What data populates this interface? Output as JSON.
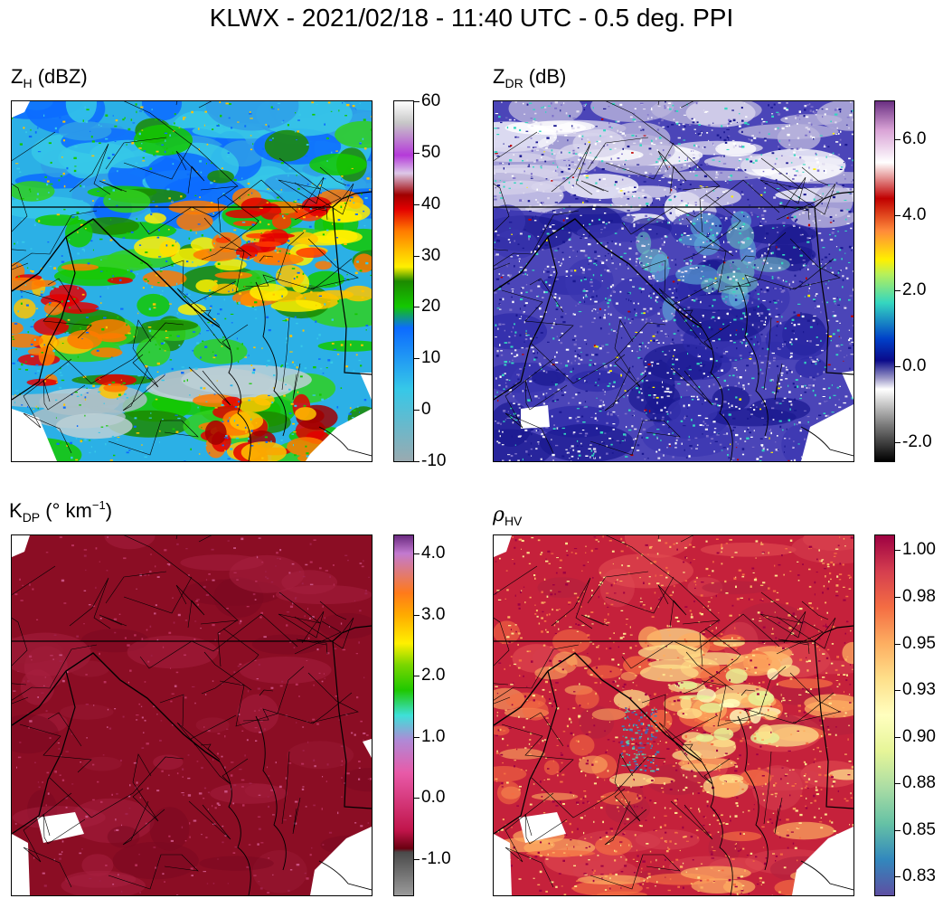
{
  "chart_data": [
    {
      "type": "heatmap",
      "title": "KLWX - 2021/02/18 - 11:40 UTC - 0.5 deg. PPI",
      "panels": [
        {
          "id": "zh",
          "label": {
            "main": "Z",
            "sub": "H",
            "rest": " (dBZ)"
          },
          "colorbar": {
            "range": [
              -10,
              60
            ],
            "ticks": [
              "60",
              "50",
              "40",
              "30",
              "20",
              "10",
              "0",
              "-10"
            ],
            "tick_values": [
              60,
              50,
              40,
              30,
              20,
              10,
              0,
              -10
            ],
            "colors": [
              "#ffffff",
              "#c7c7c7",
              "#b53ad9",
              "#dcc8e8",
              "#a00000",
              "#e30000",
              "#ff7a00",
              "#ffc400",
              "#fff000",
              "#1c8a00",
              "#14c800",
              "#0c6bff",
              "#36c8e8",
              "#9aaab0"
            ],
            "stops": [
              0,
              0.06,
              0.15,
              0.2,
              0.26,
              0.3,
              0.36,
              0.42,
              0.46,
              0.5,
              0.57,
              0.63,
              0.8,
              1.0
            ]
          }
        },
        {
          "id": "zdr",
          "label": {
            "main": "Z",
            "sub": "DR",
            "rest": " (dB)"
          },
          "colorbar": {
            "range": [
              -2.5,
              7
            ],
            "ticks": [
              "6.0",
              "4.0",
              "2.0",
              "0.0",
              "-2.0"
            ],
            "tick_values": [
              6,
              4,
              2,
              0,
              -2
            ],
            "colors": [
              "#6a2f82",
              "#d9a3d6",
              "#ffffff",
              "#c00000",
              "#ff8a3a",
              "#fff000",
              "#b7f05a",
              "#34d6c0",
              "#0040c8",
              "#0a0a8a",
              "#9d99c8",
              "#ffffff",
              "#7a7a7a",
              "#000000"
            ],
            "stops": [
              0,
              0.08,
              0.17,
              0.27,
              0.36,
              0.44,
              0.48,
              0.56,
              0.66,
              0.72,
              0.77,
              0.8,
              0.9,
              1.0
            ]
          }
        },
        {
          "id": "kdp",
          "label": {
            "main": "K",
            "sub": "DP",
            "rest1": " (",
            "deg": "°",
            "rest2": " km",
            "sup": "−1",
            "rest3": ")"
          },
          "colorbar": {
            "range": [
              -1.6,
              4.3
            ],
            "ticks": [
              "4.0",
              "3.0",
              "2.0",
              "1.0",
              "0.0",
              "-1.0"
            ],
            "tick_values": [
              4,
              3,
              2,
              1,
              0,
              -1
            ],
            "colors": [
              "#6a2a80",
              "#c27ad0",
              "#ff7a1a",
              "#ffaa00",
              "#fff000",
              "#7ad600",
              "#1fc800",
              "#3ee0d8",
              "#b089d6",
              "#e85aa8",
              "#c0144a",
              "#6a0010",
              "#4a4a4a",
              "#9a9a9a"
            ],
            "stops": [
              0,
              0.05,
              0.16,
              0.22,
              0.3,
              0.36,
              0.43,
              0.5,
              0.57,
              0.66,
              0.82,
              0.87,
              0.88,
              1.0
            ]
          }
        },
        {
          "id": "rhohv",
          "label": {
            "main": "ρ",
            "sub": "HV",
            "rest": ""
          },
          "colorbar": {
            "range": [
              0.815,
              1.008
            ],
            "ticks": [
              "1.00",
              "0.98",
              "0.95",
              "0.93",
              "0.90",
              "0.88",
              "0.85",
              "0.83"
            ],
            "tick_values": [
              1.0,
              0.975,
              0.95,
              0.925,
              0.9,
              0.875,
              0.85,
              0.825
            ],
            "colors": [
              "#9e0142",
              "#d53e4f",
              "#f46d43",
              "#fdae61",
              "#fee08b",
              "#ffffbf",
              "#e6f598",
              "#abdda4",
              "#66c2a5",
              "#3288bd",
              "#5e4fa2"
            ],
            "stops": [
              0,
              0.1,
              0.2,
              0.3,
              0.4,
              0.5,
              0.6,
              0.7,
              0.8,
              0.9,
              1.0
            ]
          }
        }
      ]
    }
  ],
  "colors": {
    "zh_background": "#2bb0e6",
    "zdr_background": "#4b45b8",
    "kdp_background": "#8b0d24",
    "rhohv_background": "#c5213b",
    "boundary_line": "#000000"
  }
}
